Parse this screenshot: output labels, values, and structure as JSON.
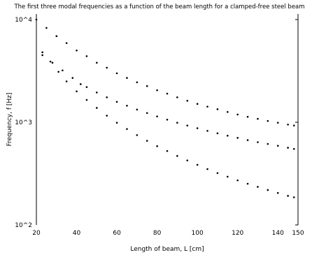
{
  "chart_data": {
    "type": "scatter",
    "title": "The first three modal frequencies as a function of the beam length for a clamped-free steel beam",
    "xlabel": "Length of beam, L [cm]",
    "ylabel": "Frequency, f [Hz]",
    "xlim": [
      20,
      150
    ],
    "ylim": [
      100,
      10000
    ],
    "yscale": "log",
    "x_ticks": [
      "20",
      "40",
      "60",
      "80",
      "100",
      "120",
      "140",
      "150"
    ],
    "y_ticks": [
      "10^2",
      "10^3",
      "10^4"
    ],
    "grid": false,
    "series": [
      {
        "marker_color": "#000000",
        "x": [
          20,
          25,
          30,
          35,
          40,
          45,
          50,
          55,
          60,
          65,
          70,
          75,
          80,
          85,
          90,
          95,
          100,
          105,
          110,
          115,
          120,
          125,
          130,
          135,
          140,
          145,
          148
        ],
        "values": [
          10000,
          8300,
          6900,
          5900,
          5000,
          4400,
          3800,
          3400,
          3000,
          2700,
          2450,
          2250,
          2050,
          1900,
          1750,
          1620,
          1510,
          1420,
          1340,
          1260,
          1190,
          1130,
          1080,
          1030,
          990,
          950,
          930
        ]
      },
      {
        "marker_color": "#000000",
        "x": [
          23,
          28,
          33,
          38,
          42,
          45,
          50,
          55,
          60,
          65,
          70,
          75,
          80,
          85,
          90,
          95,
          100,
          105,
          110,
          115,
          120,
          125,
          130,
          135,
          140,
          145,
          148
        ],
        "values": [
          4500,
          3800,
          3200,
          2700,
          2350,
          2200,
          1950,
          1750,
          1580,
          1450,
          1330,
          1230,
          1140,
          1060,
          990,
          930,
          875,
          825,
          780,
          740,
          705,
          670,
          640,
          615,
          590,
          565,
          550
        ]
      },
      {
        "marker_color": "#000000",
        "x": [
          23,
          27,
          31,
          35,
          40,
          45,
          50,
          55,
          60,
          65,
          70,
          75,
          80,
          85,
          90,
          95,
          100,
          105,
          110,
          115,
          120,
          125,
          130,
          135,
          140,
          145,
          148
        ],
        "values": [
          4800,
          3900,
          3100,
          2500,
          2000,
          1650,
          1380,
          1160,
          990,
          860,
          750,
          660,
          585,
          525,
          470,
          425,
          385,
          350,
          320,
          295,
          272,
          252,
          235,
          219,
          205,
          192,
          186
        ]
      }
    ]
  }
}
